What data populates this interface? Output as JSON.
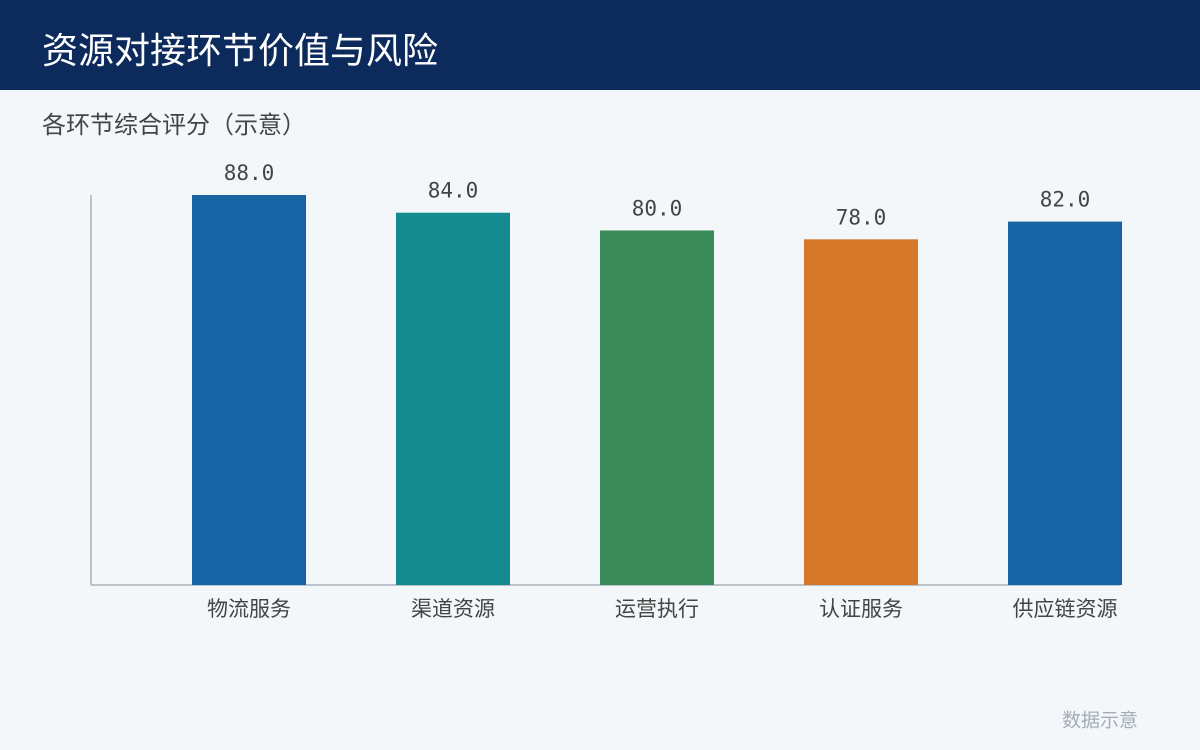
{
  "header": {
    "title": "资源对接环节价值与风险"
  },
  "chart_data": {
    "type": "bar",
    "title": "各环节综合评分（示意）",
    "categories": [
      "物流服务",
      "渠道资源",
      "运营执行",
      "认证服务",
      "供应链资源"
    ],
    "values": [
      88,
      84,
      80,
      78,
      82
    ],
    "value_labels": [
      "88.0",
      "84.0",
      "80.0",
      "78.0",
      "82.0"
    ],
    "colors": [
      "#1764a4",
      "#138b8e",
      "#3c8c5b",
      "#d6782a",
      "#1764a4"
    ],
    "ylim": [
      0,
      88
    ]
  },
  "footer": {
    "note": "数据示意"
  }
}
